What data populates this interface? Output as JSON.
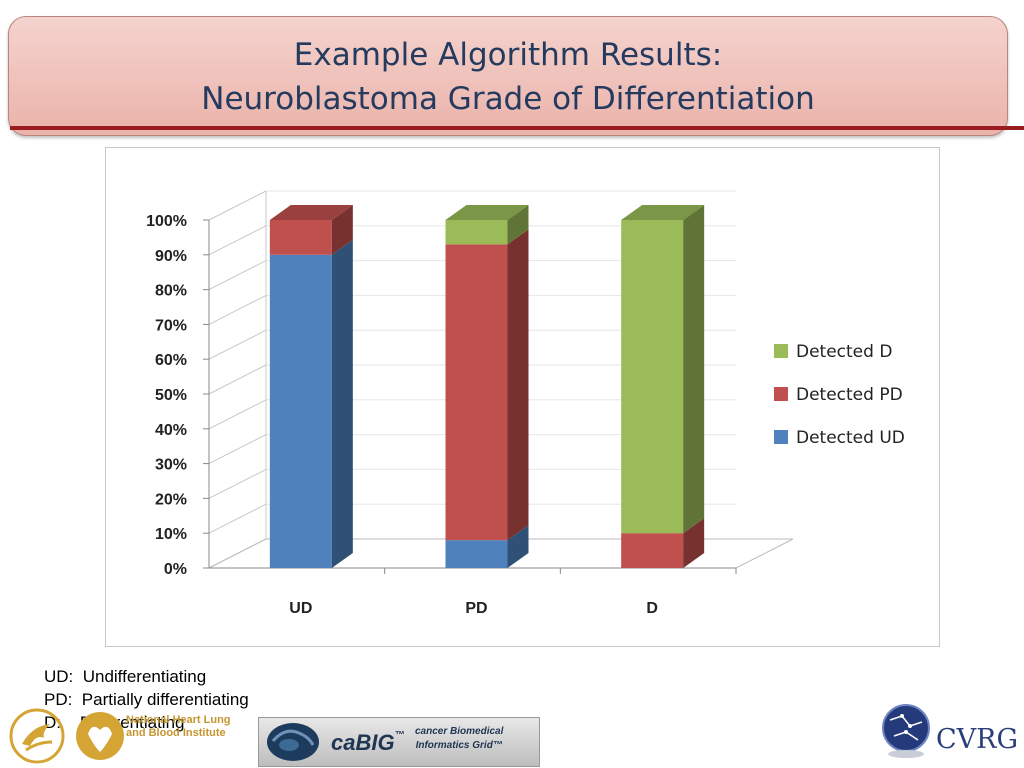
{
  "slide": {
    "title_line1": "Example Algorithm Results:",
    "title_line2": "Neuroblastoma Grade of Differentiation"
  },
  "chart_data": {
    "type": "bar",
    "stacked": true,
    "three_d": true,
    "categories": [
      "UD",
      "PD",
      "D"
    ],
    "series": [
      {
        "name": "Detected UD",
        "color": "#4f81bd",
        "values": [
          90,
          8,
          0
        ]
      },
      {
        "name": "Detected PD",
        "color": "#c0504d",
        "values": [
          10,
          85,
          10
        ]
      },
      {
        "name": "Detected D",
        "color": "#9bbb59",
        "values": [
          0,
          7,
          90
        ]
      }
    ],
    "y_ticks": [
      "0%",
      "10%",
      "20%",
      "30%",
      "40%",
      "50%",
      "60%",
      "70%",
      "80%",
      "90%",
      "100%"
    ],
    "ylim": [
      0,
      100
    ],
    "legend_order": [
      "Detected D",
      "Detected PD",
      "Detected UD"
    ],
    "legend_position": "right",
    "grid": true
  },
  "footnotes": [
    "UD:  Undifferentiating",
    "PD:  Partially differentiating",
    "D:    Differentiating"
  ],
  "logos": {
    "nhlbi": "National Heart Lung and Blood Institute",
    "cabig_name": "caBIG",
    "cabig_tm": "™",
    "cabig_sub1": "cancer Biomedical",
    "cabig_sub2": "Informatics Grid™",
    "cvrg": "CVRG"
  }
}
